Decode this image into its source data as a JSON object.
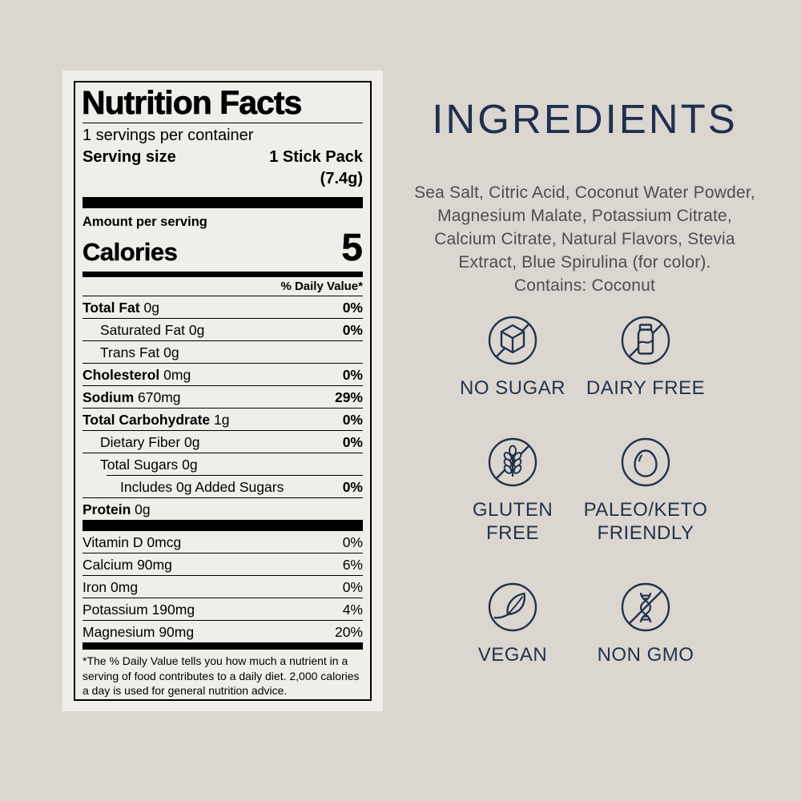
{
  "colors": {
    "page_background": "#dbd6cf",
    "label_panel_background": "#f0eeea",
    "label_text": "#000000",
    "accent_navy": "#22334e",
    "ingredients_text": "#4b4e53"
  },
  "nutrition_label": {
    "title": "Nutrition Facts",
    "servings_per_container": "1 servings per container",
    "serving_size_label": "Serving size",
    "serving_size_value": "1 Stick Pack",
    "serving_size_weight": "(7.4g)",
    "amount_per_serving": "Amount per serving",
    "calories_label": "Calories",
    "calories_value": "5",
    "daily_value_header": "% Daily Value*",
    "nutrient_rows": [
      {
        "bold": "Total Fat",
        "rest": "0g",
        "dv": "0%",
        "indent": 0
      },
      {
        "bold": "",
        "rest": "Saturated Fat 0g",
        "dv": "0%",
        "indent": 1
      },
      {
        "bold": "",
        "rest": "Trans Fat 0g",
        "dv": "",
        "indent": 1
      },
      {
        "bold": "Cholesterol",
        "rest": "0mg",
        "dv": "0%",
        "indent": 0
      },
      {
        "bold": "Sodium",
        "rest": "670mg",
        "dv": "29%",
        "indent": 0
      },
      {
        "bold": "Total Carbohydrate",
        "rest": "1g",
        "dv": "0%",
        "indent": 0
      },
      {
        "bold": "",
        "rest": "Dietary Fiber 0g",
        "dv": "0%",
        "indent": 1
      },
      {
        "bold": "",
        "rest": "Total Sugars 0g",
        "dv": "",
        "indent": 1
      },
      {
        "bold": "",
        "rest": "Includes 0g Added Sugars",
        "dv": "0%",
        "indent": 2
      },
      {
        "bold": "Protein",
        "rest": "0g",
        "dv": "",
        "indent": 0
      }
    ],
    "vitamin_rows": [
      {
        "name": "Vitamin D 0mcg",
        "dv": "0%"
      },
      {
        "name": "Calcium 90mg",
        "dv": "6%"
      },
      {
        "name": "Iron 0mg",
        "dv": "0%"
      },
      {
        "name": "Potassium 190mg",
        "dv": "4%"
      },
      {
        "name": "Magnesium 90mg",
        "dv": "20%"
      }
    ],
    "footnote": "*The % Daily Value tells you how much a nutrient in a serving of food contributes to a daily diet. 2,000 calories a day is used for general nutrition advice."
  },
  "ingredients": {
    "heading": "INGREDIENTS",
    "lines": [
      "Sea Salt, Citric Acid, Coconut Water Powder,",
      "Magnesium Malate, Potassium Citrate,",
      "Calcium Citrate, Natural Flavors, Stevia",
      "Extract, Blue Spirulina (for color).",
      "Contains: Coconut"
    ]
  },
  "badges": [
    {
      "icon": "no-sugar-icon",
      "label": "NO SUGAR"
    },
    {
      "icon": "dairy-free-icon",
      "label": "DAIRY FREE"
    },
    {
      "icon": "gluten-free-icon",
      "label": "GLUTEN FREE"
    },
    {
      "icon": "paleo-keto-icon",
      "label": "PALEO/KETO FRIENDLY"
    },
    {
      "icon": "vegan-icon",
      "label": "VEGAN"
    },
    {
      "icon": "non-gmo-icon",
      "label": "NON GMO"
    }
  ]
}
